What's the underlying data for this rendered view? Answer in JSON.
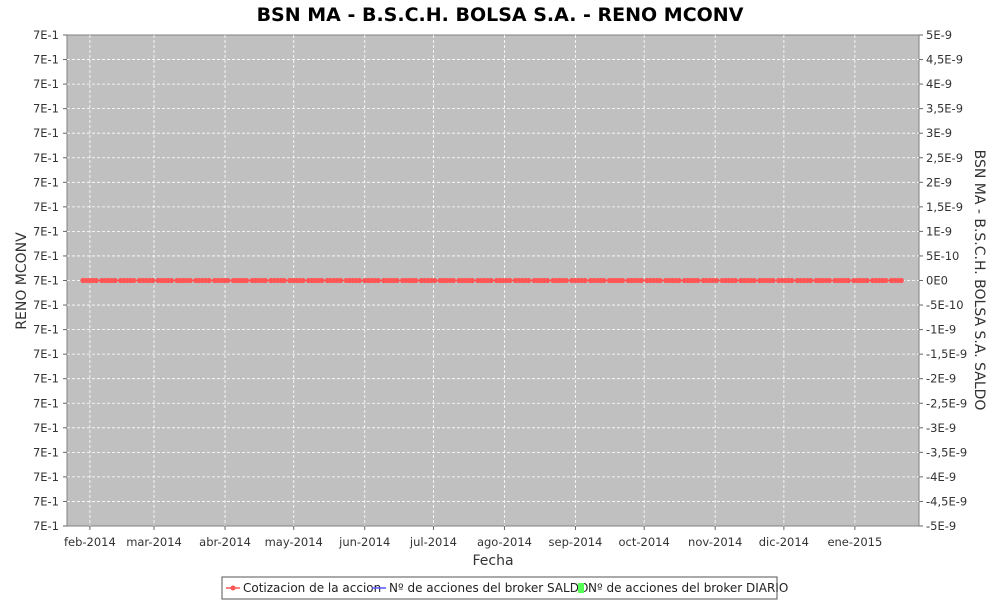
{
  "chart_data": {
    "type": "line",
    "title": "BSN MA - B.S.C.H. BOLSA S.A. - RENO MCONV",
    "xlabel": "Fecha",
    "ylabel_left": "RENO MCONV",
    "ylabel_right": "BSN MA - B.S.C.H. BOLSA S.A. SALDO",
    "x_ticks": [
      "feb-2014",
      "mar-2014",
      "abr-2014",
      "may-2014",
      "jun-2014",
      "jul-2014",
      "ago-2014",
      "sep-2014",
      "oct-2014",
      "nov-2014",
      "dic-2014",
      "ene-2015"
    ],
    "x_tick_dates": [
      "2014-02-01",
      "2014-03-01",
      "2014-04-01",
      "2014-05-01",
      "2014-06-01",
      "2014-07-01",
      "2014-08-01",
      "2014-09-01",
      "2014-10-01",
      "2014-11-01",
      "2014-12-01",
      "2015-01-01"
    ],
    "xlim": [
      "2014-01-22",
      "2015-01-29"
    ],
    "y_left_ticks": [
      "7E-1",
      "7E-1",
      "7E-1",
      "7E-1",
      "7E-1",
      "7E-1",
      "7E-1",
      "7E-1",
      "7E-1",
      "7E-1",
      "7E-1",
      "7E-1",
      "7E-1",
      "7E-1",
      "7E-1",
      "7E-1",
      "7E-1",
      "7E-1",
      "7E-1",
      "7E-1",
      "7E-1"
    ],
    "y_right_ticks": [
      "5E-9",
      "4,5E-9",
      "4E-9",
      "3,5E-9",
      "3E-9",
      "2,5E-9",
      "2E-9",
      "1,5E-9",
      "1E-9",
      "5E-10",
      "0E0",
      "-5E-10",
      "-1E-9",
      "-1,5E-9",
      "-2E-9",
      "-2,5E-9",
      "-3E-9",
      "-3,5E-9",
      "-4E-9",
      "-4,5E-9",
      "-5E-9"
    ],
    "y_right_lim": [
      -5e-09,
      5e-09
    ],
    "grid": true,
    "legend_position": "bottom",
    "series": [
      {
        "name": "Cotizacion de la accion",
        "color": "#ff5555",
        "marker": "circle",
        "x_start": "2014-01-29",
        "x_end": "2015-01-22",
        "value": 0.7,
        "right_axis_value": 0
      },
      {
        "name": "Nº de acciones del broker SALDO",
        "color": "#5555ff"
      },
      {
        "name": "Nº de acciones del broker DIARIO",
        "color": "#55ff55"
      }
    ]
  }
}
